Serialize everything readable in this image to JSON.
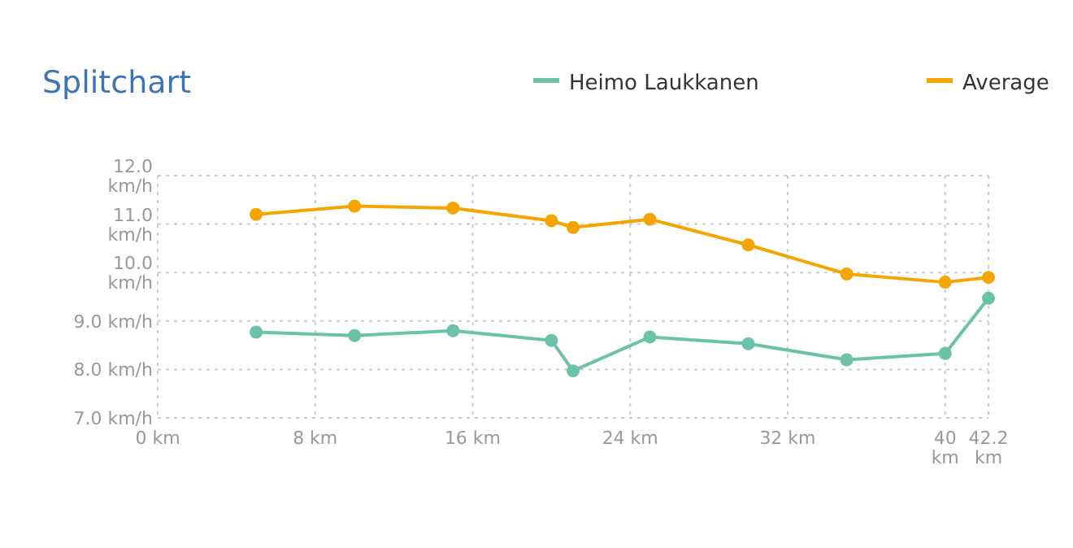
{
  "chart_data": {
    "type": "line",
    "title": "Splitchart",
    "x": [
      5,
      10,
      15,
      20,
      21.1,
      25,
      30,
      35,
      40,
      42.2
    ],
    "series": [
      {
        "name": "Heimo Laukkanen",
        "color": "#6cc1a9",
        "values": [
          8.77,
          8.7,
          8.8,
          8.6,
          7.97,
          8.67,
          8.53,
          8.2,
          8.33,
          9.47
        ]
      },
      {
        "name": "Average",
        "color": "#f5a500",
        "values": [
          11.2,
          11.37,
          11.33,
          11.07,
          10.93,
          11.1,
          10.57,
          9.97,
          9.8,
          9.9
        ]
      }
    ],
    "xlim": [
      0,
      42.2
    ],
    "xticks": [
      {
        "value": 0,
        "label": "0 km"
      },
      {
        "value": 8,
        "label": "8 km"
      },
      {
        "value": 16,
        "label": "16 km"
      },
      {
        "value": 24,
        "label": "24 km"
      },
      {
        "value": 32,
        "label": "32 km"
      },
      {
        "value": 40,
        "label": "40 km"
      },
      {
        "value": 42.2,
        "label": "42.2 km"
      }
    ],
    "ylim": [
      7,
      12
    ],
    "yticks": [
      {
        "value": 7,
        "label": "7.0 km/h"
      },
      {
        "value": 8,
        "label": "8.0 km/h"
      },
      {
        "value": 9,
        "label": "9.0 km/h"
      },
      {
        "value": 10,
        "label": "10.0 km/h"
      },
      {
        "value": 11,
        "label": "11.0 km/h"
      },
      {
        "value": 12,
        "label": "12.0 km/h"
      }
    ],
    "grid": true,
    "legend": "top right",
    "marker": "circle",
    "line_style": "solid"
  }
}
